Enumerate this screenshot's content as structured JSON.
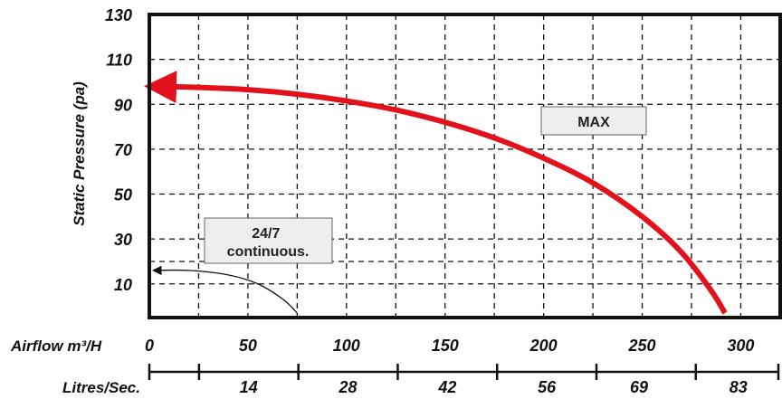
{
  "chart_data": {
    "type": "line",
    "ylabel": "Static Pressure (pa)",
    "x_axis_primary": {
      "label": "Airflow m³/H",
      "ticks": [
        "0",
        "50",
        "100",
        "150",
        "200",
        "250",
        "300"
      ],
      "range": [
        0,
        320
      ]
    },
    "x_axis_secondary": {
      "label": "Litres/Sec.",
      "ticks": [
        "14",
        "28",
        "42",
        "56",
        "69",
        "83"
      ]
    },
    "y_axis": {
      "ticks": [
        "10",
        "30",
        "50",
        "70",
        "90",
        "110",
        "130"
      ],
      "range": [
        -5,
        130
      ]
    },
    "grid": true,
    "series": [
      {
        "name": "MAX",
        "color": "#e3111b",
        "x": [
          0,
          25,
          50,
          75,
          100,
          125,
          150,
          175,
          200,
          225,
          250,
          270,
          285,
          292
        ],
        "y": [
          98,
          97.5,
          96.5,
          94.5,
          91.5,
          87.5,
          82,
          75,
          66,
          55,
          40,
          24,
          7,
          -3
        ]
      },
      {
        "name": "24/7 continuous.",
        "color": "#111111",
        "x": [
          2,
          20,
          40,
          55,
          68,
          75
        ],
        "y": [
          16,
          16,
          14,
          10,
          3,
          -3
        ]
      }
    ]
  }
}
